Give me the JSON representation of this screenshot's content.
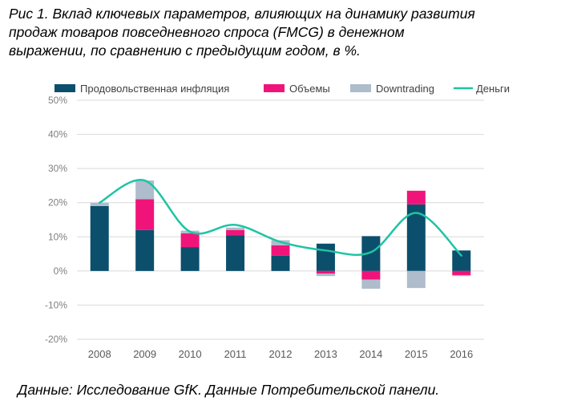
{
  "title_lines": [
    "Рис 1. Вклад ключевых параметров, влияющих на динамику развития",
    "продаж товаров повседневного спроса (FMCG) в денежном",
    "выражении, по сравнению с предыдущим годом, в %."
  ],
  "source": "Данные: Исследование GfK. Данные Потребительской панели.",
  "colors": {
    "inflation": "#0b4f6c",
    "volume": "#f0147a",
    "downtrading": "#aebccb",
    "money": "#1ec4a4",
    "grid": "#d9d9d9"
  },
  "chart_data": {
    "type": "bar",
    "stacked": true,
    "categories": [
      "2008",
      "2009",
      "2010",
      "2011",
      "2012",
      "2013",
      "2014",
      "2015",
      "2016"
    ],
    "ylim": [
      -20,
      50
    ],
    "yticks": [
      -20,
      -10,
      0,
      10,
      20,
      30,
      40,
      50
    ],
    "ytick_labels": [
      "-20%",
      "-10%",
      "0%",
      "10%",
      "20%",
      "30%",
      "40%",
      "50%"
    ],
    "grid": true,
    "legend_position": "top",
    "series": [
      {
        "name": "Продовольственная инфляция",
        "key": "inflation",
        "kind": "bar",
        "values": [
          19,
          12,
          7,
          10.5,
          4.5,
          8,
          10.2,
          19.5,
          6
        ]
      },
      {
        "name": "Объемы",
        "key": "volume",
        "kind": "bar",
        "values": [
          0,
          9,
          4,
          1.5,
          3,
          -0.8,
          -2.5,
          4,
          -1.2
        ]
      },
      {
        "name": "Downtrading",
        "key": "downtrading",
        "kind": "bar",
        "values": [
          1,
          5.5,
          0.8,
          0.7,
          1.5,
          -0.7,
          -2.7,
          -5,
          -0.3
        ]
      },
      {
        "name": "Деньги",
        "key": "money",
        "kind": "line",
        "values": [
          20,
          26.5,
          11.5,
          13.5,
          8.5,
          6,
          5.5,
          17,
          4.5
        ]
      }
    ]
  }
}
